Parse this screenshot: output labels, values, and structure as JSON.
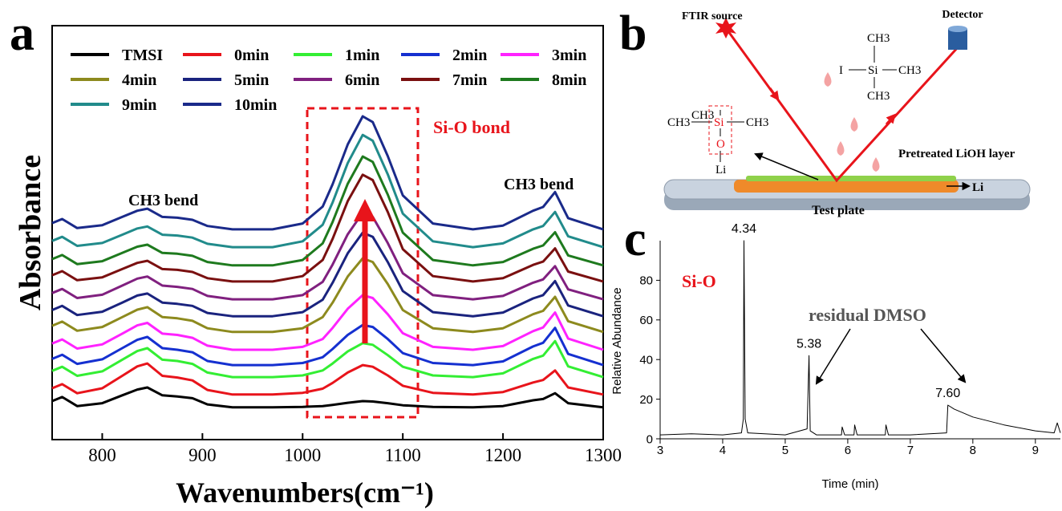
{
  "chart_data": [
    {
      "type": "line",
      "panel_label": "a",
      "x_label": "Wavenumbers(cm⁻¹)",
      "y_label": "Absorbance",
      "annotations": [
        "Si-O bond",
        "CH3 bend",
        "CH3 bend"
      ],
      "x": [
        750,
        760,
        775,
        800,
        820,
        835,
        845,
        860,
        875,
        890,
        905,
        930,
        970,
        1000,
        1020,
        1030,
        1045,
        1060,
        1070,
        1085,
        1100,
        1130,
        1170,
        1200,
        1230,
        1240,
        1252,
        1265,
        1300
      ],
      "xlim": [
        750,
        1300
      ],
      "xticks": [
        800,
        900,
        1000,
        1100,
        1200,
        1300
      ],
      "ylim": [
        0,
        100
      ],
      "legend": "upper left",
      "series": [
        {
          "name": "TMSI",
          "color": "#000000",
          "values": [
            9.3,
            10.3,
            8.1,
            8.8,
            10.7,
            12.1,
            12.6,
            10.7,
            10.4,
            10.0,
            8.5,
            7.8,
            7.8,
            7.9,
            8.1,
            8.4,
            8.9,
            9.3,
            9.2,
            8.8,
            8.3,
            7.9,
            7.8,
            8.1,
            9.5,
            9.8,
            11.2,
            8.8,
            7.8
          ]
        },
        {
          "name": "0min",
          "color": "#e8141b",
          "values": [
            12.4,
            13.4,
            11.2,
            12.4,
            15.4,
            17.7,
            18.4,
            15.4,
            15.0,
            14.3,
            12.0,
            10.9,
            10.9,
            11.3,
            12.3,
            13.7,
            16.2,
            18.0,
            17.6,
            15.5,
            13.0,
            11.3,
            10.9,
            11.5,
            13.8,
            14.4,
            16.7,
            12.6,
            10.9
          ]
        },
        {
          "name": "1min",
          "color": "#33ee33",
          "values": [
            16.6,
            17.6,
            15.4,
            16.5,
            19.3,
            21.4,
            22.1,
            19.3,
            19.0,
            18.3,
            16.2,
            15.1,
            15.1,
            15.5,
            16.7,
            18.4,
            21.3,
            23.3,
            22.9,
            20.4,
            17.6,
            15.5,
            15.1,
            16.0,
            19.5,
            20.3,
            23.8,
            17.7,
            15.1
          ]
        },
        {
          "name": "2min",
          "color": "#1530d0",
          "values": [
            19.5,
            20.5,
            18.3,
            19.4,
            22.1,
            24.1,
            24.8,
            22.1,
            21.7,
            21.1,
            19.0,
            18.0,
            18.0,
            18.5,
            19.9,
            21.9,
            25.3,
            27.7,
            27.2,
            24.3,
            20.9,
            18.5,
            18.0,
            18.9,
            22.5,
            23.4,
            27.0,
            20.7,
            18.0
          ]
        },
        {
          "name": "3min",
          "color": "#ff22ff",
          "values": [
            23.2,
            24.2,
            22.0,
            23.0,
            25.6,
            27.6,
            28.2,
            25.6,
            25.3,
            24.6,
            22.7,
            21.7,
            21.7,
            22.4,
            24.3,
            27.0,
            31.6,
            34.9,
            34.2,
            30.3,
            25.7,
            22.4,
            21.7,
            22.6,
            26.2,
            27.1,
            30.7,
            24.4,
            21.7
          ]
        },
        {
          "name": "4min",
          "color": "#8d8a1e",
          "values": [
            27.5,
            28.5,
            26.3,
            27.2,
            29.6,
            31.4,
            32.0,
            29.6,
            29.3,
            28.7,
            26.9,
            26.0,
            26.0,
            26.9,
            29.6,
            33.1,
            39.4,
            43.8,
            42.9,
            37.6,
            31.3,
            26.9,
            26.0,
            26.9,
            30.3,
            31.1,
            34.5,
            28.6,
            26.0
          ]
        },
        {
          "name": "5min",
          "color": "#1a237e",
          "values": [
            31.3,
            32.3,
            30.1,
            30.9,
            33.1,
            34.8,
            35.3,
            33.1,
            32.8,
            32.3,
            30.6,
            29.8,
            29.8,
            30.8,
            33.8,
            37.9,
            45.0,
            50.0,
            49.0,
            42.9,
            35.9,
            30.8,
            29.8,
            30.7,
            34.1,
            34.9,
            38.3,
            32.4,
            29.8
          ]
        },
        {
          "name": "6min",
          "color": "#80207f",
          "values": [
            35.4,
            36.4,
            34.2,
            35.0,
            37.2,
            38.9,
            39.4,
            37.2,
            36.9,
            36.4,
            34.7,
            33.9,
            33.9,
            34.9,
            38.1,
            42.3,
            49.6,
            54.8,
            53.8,
            47.5,
            40.2,
            34.9,
            33.9,
            34.7,
            37.9,
            38.7,
            41.9,
            36.3,
            33.9
          ]
        },
        {
          "name": "7min",
          "color": "#7a1010",
          "values": [
            39.7,
            40.7,
            38.5,
            39.2,
            41.2,
            42.7,
            43.2,
            41.2,
            41.0,
            40.5,
            39.0,
            38.2,
            38.2,
            39.5,
            43.4,
            48.5,
            57.6,
            64.0,
            62.7,
            55.0,
            46.0,
            39.5,
            38.2,
            39.0,
            42.2,
            43.0,
            46.2,
            40.6,
            38.2
          ]
        },
        {
          "name": "8min",
          "color": "#1e7a1e",
          "values": [
            43.6,
            44.6,
            42.4,
            43.1,
            45.1,
            46.6,
            47.1,
            45.1,
            44.9,
            44.4,
            42.9,
            42.1,
            42.1,
            43.4,
            47.4,
            52.6,
            61.8,
            68.4,
            67.1,
            59.2,
            50.0,
            43.4,
            42.1,
            42.9,
            46.1,
            46.9,
            50.1,
            44.5,
            42.1
          ]
        },
        {
          "name": "9min",
          "color": "#218b8b",
          "values": [
            48.0,
            49.0,
            46.8,
            47.5,
            49.5,
            51.0,
            51.5,
            49.5,
            49.3,
            48.8,
            47.3,
            46.5,
            46.5,
            47.9,
            51.9,
            57.3,
            66.8,
            73.6,
            72.2,
            64.1,
            54.6,
            47.9,
            46.5,
            47.4,
            50.8,
            51.6,
            55.0,
            49.1,
            46.5
          ]
        },
        {
          "name": "10min",
          "color": "#1a2a8a",
          "values": [
            52.3,
            53.3,
            51.1,
            51.8,
            53.8,
            55.3,
            55.8,
            53.8,
            53.6,
            53.1,
            51.6,
            50.8,
            50.8,
            52.2,
            56.3,
            61.7,
            71.3,
            78.1,
            76.7,
            68.5,
            59.0,
            52.2,
            50.8,
            51.7,
            55.3,
            56.2,
            59.8,
            53.5,
            50.8
          ]
        }
      ]
    },
    {
      "type": "line",
      "panel_label": "c",
      "x_label": "Time (min)",
      "y_label": "Relative Abundance",
      "annotations": [
        "Si-O",
        "residual DMSO"
      ],
      "x": [
        3,
        3.5,
        4,
        4.3,
        4.33,
        4.34,
        4.36,
        4.4,
        5,
        5.35,
        5.38,
        5.4,
        5.5,
        5.9,
        5.91,
        5.95,
        6.1,
        6.11,
        6.15,
        6.6,
        6.61,
        6.65,
        7,
        7.58,
        7.6,
        7.7,
        8,
        8.5,
        9,
        9.3,
        9.35,
        9.4
      ],
      "values": [
        2,
        2.5,
        2,
        3,
        10,
        100,
        10,
        3,
        2,
        5,
        42,
        4,
        2,
        2,
        6,
        2,
        2,
        7,
        2,
        2,
        7,
        2,
        2,
        3,
        17,
        15,
        11,
        7,
        4,
        3,
        8,
        3
      ],
      "color": "#000000",
      "peak_labels": [
        4.34,
        5.38,
        {
          "value": 7.6,
          "label": "7.60"
        }
      ],
      "xlim": [
        3,
        9.4
      ],
      "xticks": [
        3,
        4,
        5,
        6,
        7,
        8,
        9
      ],
      "ylim": [
        0,
        100
      ],
      "yticks": [
        0,
        20,
        40,
        60,
        80
      ]
    }
  ],
  "diagram": {
    "panel_label": "b",
    "source": "FTIR source",
    "detector": "Detector",
    "layer": "Pretreated LiOH layer",
    "metal": "Li",
    "plate": "Test plate",
    "surface_molecule": [
      "CH3",
      "CH3",
      "Si",
      "CH3",
      "O",
      "Li"
    ],
    "reagent_molecule": [
      "CH3",
      "I",
      "Si",
      "CH3",
      "CH3"
    ]
  }
}
